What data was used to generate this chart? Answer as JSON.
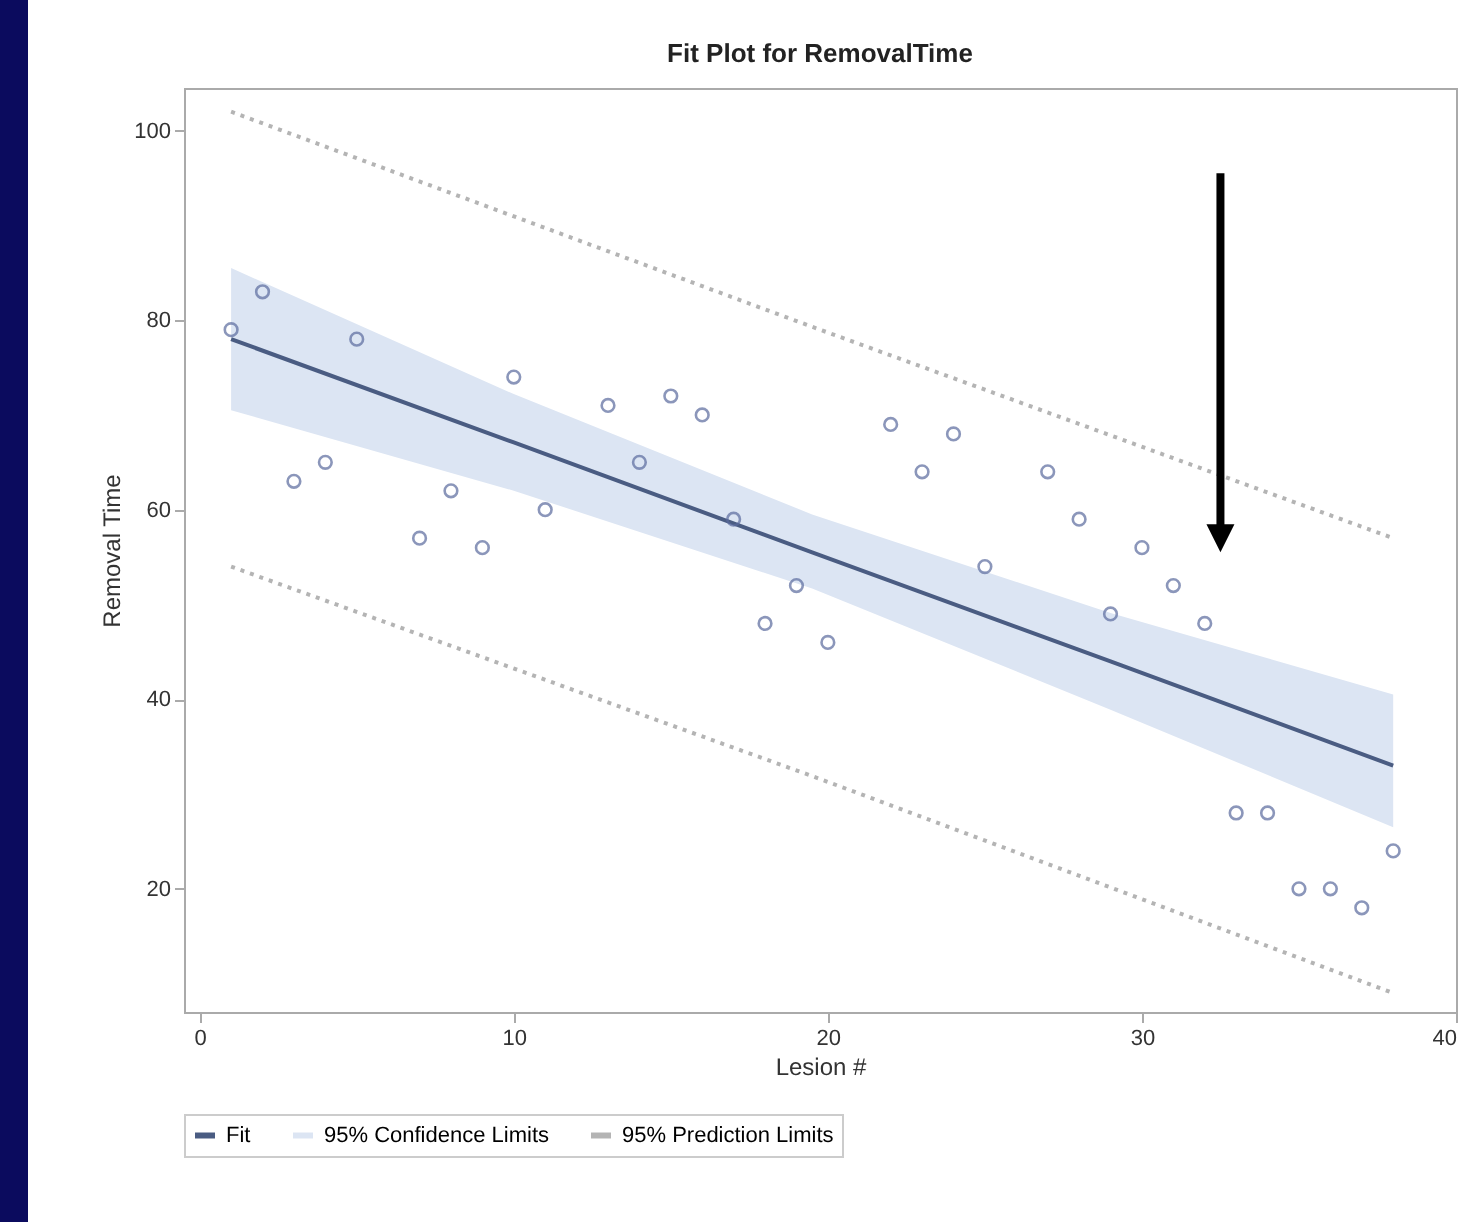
{
  "chart_data": {
    "type": "scatter",
    "title": "Fit Plot for RemovalTime",
    "xlabel": "Lesion #",
    "ylabel": "Removal Time",
    "xlim": [
      -0.5,
      40
    ],
    "xticks": [
      0,
      10,
      20,
      30,
      40
    ],
    "ylim": [
      7,
      104.5
    ],
    "yticks": [
      20,
      40,
      60,
      80,
      100
    ],
    "grid": false,
    "legend": "bottom",
    "annotations": [
      "95% Confidence Limits"
    ],
    "series": [
      {
        "color": "#5b6b9e",
        "marker": "circle",
        "x": [
          1,
          2,
          3,
          4,
          5,
          7,
          8,
          9,
          10,
          11,
          13,
          14,
          15,
          16,
          17,
          18,
          19,
          20,
          22,
          23,
          24,
          25,
          27,
          28,
          29,
          30,
          31,
          32,
          33,
          34,
          35,
          36,
          37,
          38
        ],
        "values": [
          79,
          83,
          63,
          65,
          78,
          57,
          62,
          56,
          74,
          60,
          71,
          65,
          72,
          70,
          59,
          48,
          52,
          46,
          69,
          64,
          68,
          54,
          64,
          59,
          49,
          56,
          52,
          48,
          28,
          28,
          20,
          20,
          18,
          24
        ]
      },
      {
        "type": "line",
        "name": "Fit",
        "color": "#4a5c82",
        "line_style": "solid",
        "x": [
          1,
          10,
          19.5,
          29,
          38
        ],
        "values": [
          78,
          67.1,
          55.5,
          44,
          33
        ],
        "lower": [
          70.5,
          62,
          51.7,
          38.9,
          26.5
        ],
        "upper": [
          85.5,
          72.2,
          59.5,
          49.1,
          40.5
        ]
      },
      {
        "type": "line",
        "name": "95% Prediction Limits",
        "color": "#b4b4b4",
        "line_style": "dotted",
        "x": [
          1,
          19.5,
          38
        ],
        "values": [
          102,
          79.3,
          57
        ]
      },
      {
        "type": "line",
        "color": "#b4b4b4",
        "line_style": "dotted",
        "x": [
          1,
          19.5,
          38
        ],
        "values": [
          54,
          31.9,
          9
        ]
      }
    ]
  }
}
